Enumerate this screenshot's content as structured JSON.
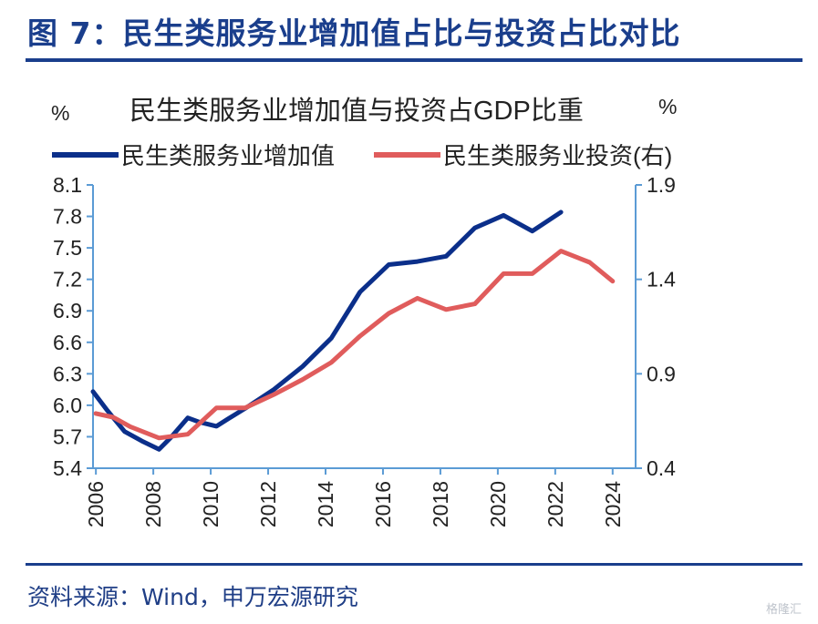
{
  "figure_title": "图 7：民生类服务业增加值占比与投资占比对比",
  "source": "资料来源：Wind，申万宏源研究",
  "watermark": "格隆汇",
  "colors": {
    "heading": "#1a3e8c",
    "series1": "#0b2f8a",
    "series2": "#e05c5c",
    "axis": "#5b9bd5"
  },
  "chart_data": {
    "type": "line",
    "title": "民生类服务业增加值与投资占GDP比重",
    "left_unit": "%",
    "right_unit": "%",
    "left_axis": {
      "ylim": [
        5.4,
        8.1
      ],
      "ticks": [
        "8.1",
        "7.8",
        "7.5",
        "7.2",
        "6.9",
        "6.6",
        "6.3",
        "6.0",
        "5.7",
        "5.4"
      ]
    },
    "right_axis": {
      "ylim": [
        0.4,
        1.9
      ],
      "ticks": [
        "1.9",
        "1.4",
        "0.9",
        "0.4"
      ]
    },
    "x_ticks": [
      "2006",
      "2008",
      "2010",
      "2012",
      "2014",
      "2016",
      "2018",
      "2020",
      "2022",
      "2024"
    ],
    "grid": false,
    "legend": "top",
    "series": [
      {
        "name": "民生类服务业增加值",
        "axis": "left",
        "x": [
          2005.9,
          2006.4,
          2007.0,
          2007.6,
          2008.2,
          2008.6,
          2009.2,
          2009.6,
          2010.2,
          2010.6,
          2011.2,
          2012.2,
          2013.2,
          2014.2,
          2015.2,
          2016.2,
          2017.2,
          2018.2,
          2019.2,
          2020.2,
          2021.2,
          2022.2
        ],
        "y": [
          6.13,
          5.95,
          5.75,
          5.66,
          5.58,
          5.69,
          5.88,
          5.84,
          5.8,
          5.87,
          5.97,
          6.15,
          6.37,
          6.64,
          7.08,
          7.34,
          7.37,
          7.42,
          7.69,
          7.81,
          7.66,
          7.84
        ]
      },
      {
        "name": "民生类服务业投资(右)",
        "axis": "right",
        "x": [
          2006.0,
          2006.6,
          2007.2,
          2008.2,
          2009.2,
          2010.2,
          2011.2,
          2012.2,
          2013.2,
          2014.2,
          2015.2,
          2016.2,
          2017.2,
          2018.2,
          2019.2,
          2020.2,
          2021.2,
          2022.2,
          2023.2,
          2024.0
        ],
        "y": [
          0.69,
          0.67,
          0.62,
          0.56,
          0.58,
          0.72,
          0.72,
          0.79,
          0.87,
          0.96,
          1.1,
          1.22,
          1.3,
          1.24,
          1.27,
          1.43,
          1.43,
          1.55,
          1.49,
          1.39
        ]
      }
    ]
  }
}
